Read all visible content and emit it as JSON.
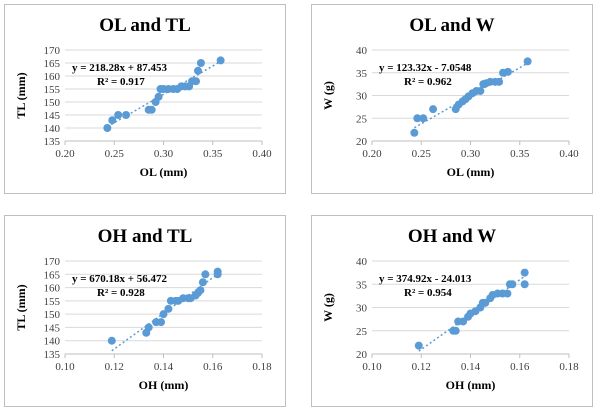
{
  "colors": {
    "marker": "#5b9bd5",
    "trend": "#5b9bd5",
    "grid": "#d9d9d9"
  },
  "chart_data": [
    {
      "type": "scatter",
      "title": "OL and TL",
      "xlabel": "OL (mm)",
      "ylabel": "TL (mm)",
      "xlim": [
        0.2,
        0.4
      ],
      "ylim": [
        135,
        170
      ],
      "xticks": [
        "0.20",
        "0.25",
        "0.30",
        "0.35",
        "0.40"
      ],
      "yticks": [
        "135",
        "140",
        "145",
        "150",
        "155",
        "160",
        "165",
        "170"
      ],
      "equation": "y = 218.28x + 87.453",
      "r2": "R² = 0.917",
      "trendline": {
        "slope": 218.28,
        "intercept": 87.453,
        "x_range": [
          0.243,
          0.358
        ]
      },
      "grid": "horizontal",
      "points": [
        {
          "x": 0.243,
          "y": 140
        },
        {
          "x": 0.248,
          "y": 143
        },
        {
          "x": 0.254,
          "y": 145
        },
        {
          "x": 0.262,
          "y": 145
        },
        {
          "x": 0.285,
          "y": 147
        },
        {
          "x": 0.288,
          "y": 147
        },
        {
          "x": 0.292,
          "y": 150
        },
        {
          "x": 0.295,
          "y": 152
        },
        {
          "x": 0.297,
          "y": 155
        },
        {
          "x": 0.3,
          "y": 155
        },
        {
          "x": 0.305,
          "y": 155
        },
        {
          "x": 0.31,
          "y": 155
        },
        {
          "x": 0.314,
          "y": 155
        },
        {
          "x": 0.318,
          "y": 156
        },
        {
          "x": 0.322,
          "y": 156
        },
        {
          "x": 0.326,
          "y": 156
        },
        {
          "x": 0.329,
          "y": 158
        },
        {
          "x": 0.333,
          "y": 158
        },
        {
          "x": 0.335,
          "y": 162
        },
        {
          "x": 0.338,
          "y": 165
        },
        {
          "x": 0.358,
          "y": 166
        }
      ]
    },
    {
      "type": "scatter",
      "title": "OL and W",
      "xlabel": "OL (mm)",
      "ylabel": "W (g)",
      "xlim": [
        0.2,
        0.4
      ],
      "ylim": [
        20,
        40
      ],
      "xticks": [
        "0.20",
        "0.25",
        "0.30",
        "0.35",
        "0.40"
      ],
      "yticks": [
        "20",
        "25",
        "30",
        "35",
        "40"
      ],
      "equation": "y = 123.32x - 7.0548",
      "r2": "R² = 0.962",
      "trendline": {
        "slope": 123.32,
        "intercept": -7.0548,
        "x_range": [
          0.243,
          0.358
        ]
      },
      "grid": "horizontal",
      "points": [
        {
          "x": 0.243,
          "y": 21.8
        },
        {
          "x": 0.246,
          "y": 25
        },
        {
          "x": 0.252,
          "y": 25
        },
        {
          "x": 0.262,
          "y": 27
        },
        {
          "x": 0.285,
          "y": 27
        },
        {
          "x": 0.288,
          "y": 28
        },
        {
          "x": 0.292,
          "y": 28.7
        },
        {
          "x": 0.295,
          "y": 29.2
        },
        {
          "x": 0.298,
          "y": 29.8
        },
        {
          "x": 0.302,
          "y": 30.5
        },
        {
          "x": 0.306,
          "y": 31
        },
        {
          "x": 0.31,
          "y": 31
        },
        {
          "x": 0.313,
          "y": 32.5
        },
        {
          "x": 0.316,
          "y": 32.7
        },
        {
          "x": 0.32,
          "y": 33
        },
        {
          "x": 0.325,
          "y": 33
        },
        {
          "x": 0.329,
          "y": 33
        },
        {
          "x": 0.333,
          "y": 35
        },
        {
          "x": 0.338,
          "y": 35.2
        },
        {
          "x": 0.358,
          "y": 37.5
        }
      ]
    },
    {
      "type": "scatter",
      "title": "OH and TL",
      "xlabel": "OH (mm)",
      "ylabel": "TL (mm)",
      "xlim": [
        0.1,
        0.18
      ],
      "ylim": [
        135,
        170
      ],
      "xticks": [
        "0.10",
        "0.12",
        "0.14",
        "0.16",
        "0.18"
      ],
      "yticks": [
        "135",
        "140",
        "145",
        "150",
        "155",
        "160",
        "165",
        "170"
      ],
      "equation": "y = 670.18x + 56.472",
      "r2": "R² = 0.928",
      "trendline": {
        "slope": 670.18,
        "intercept": 56.472,
        "x_range": [
          0.119,
          0.162
        ]
      },
      "grid": "horizontal",
      "points": [
        {
          "x": 0.119,
          "y": 140
        },
        {
          "x": 0.133,
          "y": 143
        },
        {
          "x": 0.134,
          "y": 145
        },
        {
          "x": 0.137,
          "y": 147
        },
        {
          "x": 0.139,
          "y": 147
        },
        {
          "x": 0.14,
          "y": 150
        },
        {
          "x": 0.142,
          "y": 152
        },
        {
          "x": 0.143,
          "y": 155
        },
        {
          "x": 0.145,
          "y": 155
        },
        {
          "x": 0.146,
          "y": 155
        },
        {
          "x": 0.148,
          "y": 156
        },
        {
          "x": 0.15,
          "y": 156
        },
        {
          "x": 0.151,
          "y": 156
        },
        {
          "x": 0.153,
          "y": 157
        },
        {
          "x": 0.154,
          "y": 158
        },
        {
          "x": 0.155,
          "y": 159
        },
        {
          "x": 0.156,
          "y": 162
        },
        {
          "x": 0.157,
          "y": 165
        },
        {
          "x": 0.162,
          "y": 165
        },
        {
          "x": 0.162,
          "y": 166
        }
      ]
    },
    {
      "type": "scatter",
      "title": "OH and W",
      "xlabel": "OH (mm)",
      "ylabel": "W (g)",
      "xlim": [
        0.1,
        0.18
      ],
      "ylim": [
        20,
        40
      ],
      "xticks": [
        "0.10",
        "0.12",
        "0.14",
        "0.16",
        "0.18"
      ],
      "yticks": [
        "20",
        "25",
        "30",
        "35",
        "40"
      ],
      "equation": "y = 374.92x - 24.013",
      "r2": "R² = 0.954",
      "trendline": {
        "slope": 374.92,
        "intercept": -24.013,
        "x_range": [
          0.119,
          0.162
        ]
      },
      "grid": "horizontal",
      "points": [
        {
          "x": 0.119,
          "y": 21.8
        },
        {
          "x": 0.133,
          "y": 25
        },
        {
          "x": 0.134,
          "y": 25
        },
        {
          "x": 0.135,
          "y": 27
        },
        {
          "x": 0.137,
          "y": 27
        },
        {
          "x": 0.139,
          "y": 28
        },
        {
          "x": 0.14,
          "y": 28.7
        },
        {
          "x": 0.142,
          "y": 29.2
        },
        {
          "x": 0.144,
          "y": 30
        },
        {
          "x": 0.145,
          "y": 31
        },
        {
          "x": 0.146,
          "y": 31
        },
        {
          "x": 0.148,
          "y": 32
        },
        {
          "x": 0.149,
          "y": 32.7
        },
        {
          "x": 0.151,
          "y": 33
        },
        {
          "x": 0.153,
          "y": 33
        },
        {
          "x": 0.155,
          "y": 33
        },
        {
          "x": 0.156,
          "y": 35
        },
        {
          "x": 0.157,
          "y": 35
        },
        {
          "x": 0.162,
          "y": 35
        },
        {
          "x": 0.162,
          "y": 37.5
        }
      ]
    }
  ]
}
